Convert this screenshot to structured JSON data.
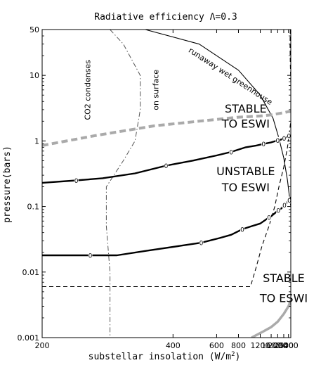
{
  "chart_data": {
    "type": "line",
    "title": "Radiative efficiency Λ=0.3",
    "xlabel": "substellar insolation (W/m²)",
    "ylabel": "pressure(bars)",
    "x_scale": "reciprocal",
    "y_scale": "log",
    "xlim": [
      200,
      4000
    ],
    "ylim": [
      0.001,
      50
    ],
    "x_ticks": [
      200,
      400,
      600,
      800,
      1200,
      1600,
      2000,
      2600,
      3400
    ],
    "x_tick_labels": [
      "200",
      "400",
      "600",
      "800",
      "1200",
      "1600",
      "2000",
      "2600",
      "3400"
    ],
    "y_ticks": [
      0.001,
      0.01,
      0.1,
      1,
      10,
      50
    ],
    "y_tick_labels": [
      "0.001",
      "0.01",
      "0.1",
      "1",
      "10",
      "50"
    ],
    "grid": false,
    "series": [
      {
        "key": "runaway",
        "style": "thin-solid",
        "color": "#000000",
        "points": [
          [
            330,
            50
          ],
          [
            500,
            30
          ],
          [
            800,
            12
          ],
          [
            1200,
            5
          ],
          [
            1700,
            2.2
          ],
          [
            2100,
            1.1
          ],
          [
            2600,
            0.55
          ],
          [
            3200,
            0.25
          ],
          [
            3700,
            0.13
          ],
          [
            4000,
            0.1
          ]
        ]
      },
      {
        "key": "co2-condenses",
        "style": "dash-dot",
        "color": "#555555",
        "points": [
          [
            270,
            50
          ],
          [
            290,
            30
          ],
          [
            320,
            10
          ],
          [
            320,
            3
          ],
          [
            310,
            1
          ],
          [
            290,
            0.5
          ],
          [
            265,
            0.2
          ],
          [
            265,
            0.05
          ],
          [
            270,
            0.01
          ],
          [
            270,
            0.003
          ],
          [
            270,
            0.001
          ]
        ]
      },
      {
        "key": "on-surface",
        "style": "dashed",
        "color": "#000000",
        "points": [
          [
            200,
            0.006
          ],
          [
            980,
            0.006
          ],
          [
            1100,
            0.012
          ],
          [
            1250,
            0.025
          ],
          [
            1500,
            0.05
          ],
          [
            1800,
            0.1
          ],
          [
            2100,
            0.2
          ],
          [
            2600,
            0.4
          ],
          [
            3200,
            0.8
          ],
          [
            4000,
            2
          ]
        ]
      },
      {
        "key": "on-surface-upper",
        "style": "dashed",
        "color": "#000000",
        "points": [
          [
            3850,
            50
          ],
          [
            3780,
            30
          ],
          [
            3850,
            15
          ],
          [
            4000,
            8
          ]
        ]
      },
      {
        "key": "upper-esw",
        "style": "dashed-thick",
        "color": "#aaaaaa",
        "points": [
          [
            200,
            0.85
          ],
          [
            250,
            1.2
          ],
          [
            350,
            1.7
          ],
          [
            500,
            2.0
          ],
          [
            800,
            2.3
          ],
          [
            1200,
            2.4
          ],
          [
            1600,
            2.5
          ],
          [
            2000,
            2.6
          ],
          [
            2600,
            2.7
          ],
          [
            3400,
            2.8
          ],
          [
            4000,
            2.8
          ]
        ]
      },
      {
        "key": "stable-lower",
        "style": "solid-thick",
        "color": "#aaaaaa",
        "points": [
          [
            1000,
            0.001
          ],
          [
            1300,
            0.00125
          ],
          [
            1600,
            0.00145
          ],
          [
            2000,
            0.00175
          ],
          [
            2600,
            0.0023
          ],
          [
            3400,
            0.003
          ],
          [
            4000,
            0.0037
          ]
        ]
      },
      {
        "key": "contour-1",
        "style": "solid-contour",
        "color": "#000000",
        "label": "0",
        "label_at": [
          230,
          380,
          720,
          1300,
          2000,
          2650,
          3500
        ],
        "points": [
          [
            200,
            0.23
          ],
          [
            230,
            0.25
          ],
          [
            260,
            0.27
          ],
          [
            310,
            0.32
          ],
          [
            380,
            0.42
          ],
          [
            470,
            0.5
          ],
          [
            600,
            0.6
          ],
          [
            720,
            0.68
          ],
          [
            900,
            0.8
          ],
          [
            1100,
            0.85
          ],
          [
            1300,
            0.9
          ],
          [
            1600,
            0.95
          ],
          [
            2000,
            1.02
          ],
          [
            2300,
            1.05
          ],
          [
            2650,
            1.1
          ],
          [
            3100,
            1.15
          ],
          [
            3500,
            1.2
          ],
          [
            4000,
            1.2
          ]
        ]
      },
      {
        "key": "contour-2",
        "style": "solid-contour",
        "color": "#000000",
        "label": "0",
        "label_at": [
          245,
          510,
          850,
          1500,
          2050,
          2700,
          3600
        ],
        "points": [
          [
            200,
            0.018
          ],
          [
            245,
            0.018
          ],
          [
            280,
            0.018
          ],
          [
            330,
            0.021
          ],
          [
            420,
            0.025
          ],
          [
            510,
            0.028
          ],
          [
            620,
            0.033
          ],
          [
            720,
            0.037
          ],
          [
            850,
            0.045
          ],
          [
            1000,
            0.05
          ],
          [
            1200,
            0.055
          ],
          [
            1500,
            0.068
          ],
          [
            1700,
            0.075
          ],
          [
            2050,
            0.088
          ],
          [
            2400,
            0.095
          ],
          [
            2700,
            0.105
          ],
          [
            3100,
            0.115
          ],
          [
            3600,
            0.125
          ],
          [
            4000,
            0.13
          ]
        ]
      },
      {
        "key": "contour-3",
        "style": "solid-contour",
        "color": "#000000",
        "points": [
          [
            3900,
            0.13
          ],
          [
            4000,
            0.14
          ]
        ]
      }
    ],
    "annotations": [
      {
        "text": "runaway wet greenhouse",
        "x": 700,
        "y": 9,
        "rotate": 33
      },
      {
        "text": "CO2 condenses",
        "x": 245,
        "y": 6,
        "rotate": -90
      },
      {
        "text": "on surface",
        "x": 360,
        "y": 6,
        "rotate": -90
      },
      {
        "text": "STABLE",
        "x": 900,
        "y": 2.7
      },
      {
        "text": "TO ESWI",
        "x": 900,
        "y": 1.6
      },
      {
        "text": "UNSTABLE",
        "x": 900,
        "y": 0.3
      },
      {
        "text": "TO ESWI",
        "x": 900,
        "y": 0.17
      },
      {
        "text": "STABLE",
        "x": 2600,
        "y": 0.007
      },
      {
        "text": "TO ESWI",
        "x": 2600,
        "y": 0.0035
      }
    ]
  }
}
